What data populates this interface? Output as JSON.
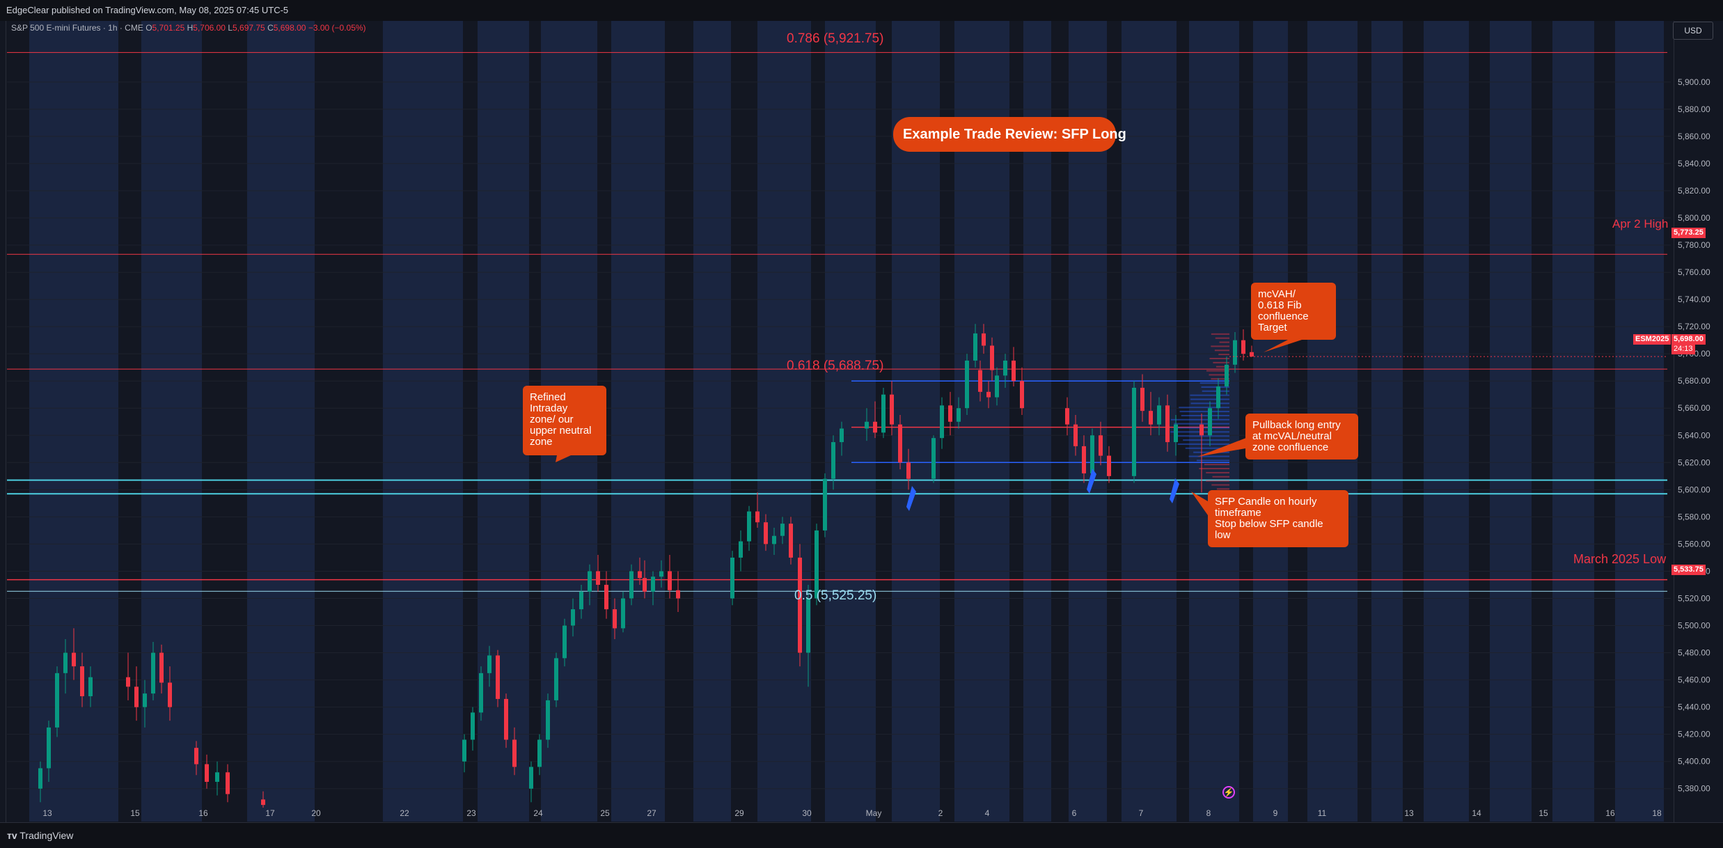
{
  "header": {
    "publisher": "EdgeClear published on TradingView.com, May 08, 2025 07:45 UTC-5",
    "symbol": "S&P 500 E-mini Futures · 1h · CME",
    "ohlc": {
      "o_label": "O",
      "o": "5,701.25",
      "h_label": "H",
      "h": "5,706.00",
      "l_label": "L",
      "l": "5,697.75",
      "c_label": "C",
      "c": "5,698.00",
      "change": "−3.00 (−0.05%)"
    },
    "currency": "USD"
  },
  "footer": {
    "brand": "TradingView"
  },
  "colors": {
    "up": "#089981",
    "down": "#f23645",
    "callout": "#e0430f",
    "fib_red": "#f23645",
    "fib_cyan": "#9bdcf0",
    "zone_cyan": "#4dd0e1",
    "blue_line": "#2962ff",
    "arrow": "#2962ff",
    "band": "#1c2845"
  },
  "annotations": {
    "title": "Example Trade Review: SFP Long",
    "refined_zone": "Refined\nIntraday\nzone/ our\nupper neutral\nzone",
    "target": "mcVAH/\n0.618 Fib\nconfluence\nTarget",
    "pullback": "Pullback long entry\nat mcVAL/neutral\nzone confluence",
    "sfp": "SFP Candle on hourly\ntimeframe\nStop below SFP candle\nlow",
    "fib_786": "0.786 (5,921.75)",
    "fib_618": "0.618 (5,688.75)",
    "fib_05": "0.5 (5,525.25)",
    "apr2_high": "Apr 2 High",
    "march_low": "March 2025 Low"
  },
  "price_tags": {
    "apr2": "5,773.25",
    "current": "5,698.00",
    "countdown": "24:13",
    "ticker": "ESM2025",
    "march": "5,533.75"
  },
  "chart_data": {
    "type": "candlestick",
    "timeframe": "1h",
    "ylim": [
      5365,
      5945
    ],
    "y_ticks": [
      5380,
      5400,
      5420,
      5440,
      5460,
      5480,
      5500,
      5520,
      5540,
      5560,
      5580,
      5600,
      5620,
      5640,
      5660,
      5680,
      5700,
      5720,
      5740,
      5760,
      5780,
      5800,
      5820,
      5840,
      5860,
      5880,
      5900
    ],
    "y_tick_labels": [
      "5,380.00",
      "5,400.00",
      "5,420.00",
      "5,440.00",
      "5,460.00",
      "5,480.00",
      "5,500.00",
      "5,520.00",
      "5,540.00",
      "5,560.00",
      "5,580.00",
      "5,600.00",
      "5,620.00",
      "5,640.00",
      "5,660.00",
      "5,680.00",
      "5,700.00",
      "5,720.00",
      "5,740.00",
      "5,760.00",
      "5,780.00",
      "5,800.00",
      "5,820.00",
      "5,840.00",
      "5,860.00",
      "5,880.00",
      "5,900.00"
    ],
    "x_labels": [
      "13",
      "15",
      "16",
      "17",
      "20",
      "22",
      "23",
      "24",
      "25",
      "27",
      "29",
      "30",
      "May",
      "2",
      "4",
      "6",
      "7",
      "8",
      "9",
      "11",
      "13",
      "14",
      "15",
      "16",
      "18"
    ],
    "levels": {
      "fib_786": 5921.75,
      "apr2_high": 5773.25,
      "fib_618": 5688.75,
      "mcVAH": 5680,
      "mcPOC": 5646,
      "mcVAL": 5620,
      "zone_top": 5607,
      "zone_bottom": 5597,
      "march_low": 5533.75,
      "fib_05": 5525.25
    },
    "sessions": [
      {
        "label": "13",
        "bars": [
          [
            5380,
            5400,
            5370,
            5395
          ],
          [
            5395,
            5430,
            5385,
            5425
          ],
          [
            5425,
            5470,
            5418,
            5465
          ],
          [
            5465,
            5490,
            5450,
            5480
          ],
          [
            5480,
            5498,
            5460,
            5470
          ],
          [
            5470,
            5480,
            5440,
            5448
          ],
          [
            5448,
            5470,
            5440,
            5462
          ]
        ]
      },
      {
        "label": "15",
        "bars": [
          [
            5462,
            5480,
            5445,
            5455
          ],
          [
            5455,
            5470,
            5430,
            5440
          ],
          [
            5440,
            5460,
            5425,
            5450
          ],
          [
            5450,
            5488,
            5445,
            5480
          ],
          [
            5480,
            5486,
            5450,
            5458
          ],
          [
            5458,
            5470,
            5430,
            5440
          ]
        ]
      },
      {
        "label": "16",
        "bars": [
          [
            5410,
            5415,
            5390,
            5398
          ],
          [
            5398,
            5405,
            5380,
            5385
          ],
          [
            5385,
            5400,
            5375,
            5392
          ],
          [
            5392,
            5398,
            5370,
            5376
          ]
        ]
      },
      {
        "label": "17",
        "bars": [
          [
            5372,
            5378,
            5366,
            5368
          ]
        ]
      },
      {
        "label": "23",
        "bars": [
          [
            5400,
            5420,
            5392,
            5416
          ],
          [
            5416,
            5440,
            5408,
            5436
          ],
          [
            5436,
            5470,
            5430,
            5465
          ],
          [
            5465,
            5485,
            5455,
            5478
          ],
          [
            5478,
            5482,
            5440,
            5446
          ],
          [
            5446,
            5450,
            5410,
            5416
          ],
          [
            5416,
            5425,
            5390,
            5396
          ]
        ]
      },
      {
        "label": "24",
        "bars": [
          [
            5380,
            5400,
            5370,
            5396
          ],
          [
            5396,
            5420,
            5390,
            5416
          ],
          [
            5416,
            5450,
            5410,
            5445
          ],
          [
            5445,
            5480,
            5440,
            5476
          ],
          [
            5476,
            5505,
            5470,
            5500
          ],
          [
            5500,
            5520,
            5492,
            5512
          ],
          [
            5512,
            5530,
            5505,
            5525
          ],
          [
            5525,
            5545,
            5515,
            5540
          ]
        ]
      },
      {
        "label": "25",
        "bars": [
          [
            5540,
            5552,
            5525,
            5530
          ],
          [
            5530,
            5540,
            5505,
            5512
          ],
          [
            5512,
            5520,
            5490,
            5498
          ],
          [
            5498,
            5525,
            5495,
            5520
          ],
          [
            5520,
            5545,
            5515,
            5540
          ],
          [
            5540,
            5550,
            5530,
            5535
          ]
        ]
      },
      {
        "label": "27",
        "bars": [
          [
            5535,
            5548,
            5520,
            5525
          ],
          [
            5525,
            5540,
            5515,
            5536
          ],
          [
            5536,
            5548,
            5528,
            5540
          ],
          [
            5540,
            5552,
            5520,
            5526
          ],
          [
            5526,
            5540,
            5510,
            5520
          ]
        ]
      },
      {
        "label": "29",
        "bars": [
          [
            5520,
            5555,
            5515,
            5550
          ],
          [
            5550,
            5570,
            5540,
            5562
          ],
          [
            5562,
            5588,
            5555,
            5584
          ],
          [
            5584,
            5598,
            5572,
            5576
          ],
          [
            5576,
            5582,
            5555,
            5560
          ],
          [
            5560,
            5572,
            5552,
            5566
          ],
          [
            5566,
            5580,
            5560,
            5575
          ],
          [
            5575,
            5580,
            5545,
            5550
          ]
        ]
      },
      {
        "label": "30",
        "bars": [
          [
            5550,
            5560,
            5470,
            5480
          ],
          [
            5480,
            5530,
            5455,
            5520
          ],
          [
            5520,
            5575,
            5515,
            5570
          ],
          [
            5570,
            5612,
            5565,
            5608
          ],
          [
            5608,
            5640,
            5600,
            5635
          ],
          [
            5635,
            5650,
            5625,
            5645
          ]
        ]
      },
      {
        "label": "May",
        "bars": [
          [
            5645,
            5660,
            5636,
            5650
          ],
          [
            5650,
            5665,
            5638,
            5642
          ],
          [
            5642,
            5675,
            5638,
            5670
          ],
          [
            5670,
            5680,
            5640,
            5648
          ],
          [
            5648,
            5655,
            5615,
            5620
          ],
          [
            5620,
            5630,
            5600,
            5608
          ]
        ]
      },
      {
        "label": "2",
        "bars": [
          [
            5608,
            5640,
            5605,
            5638
          ],
          [
            5638,
            5668,
            5630,
            5662
          ],
          [
            5662,
            5672,
            5640,
            5650
          ],
          [
            5650,
            5668,
            5645,
            5660
          ],
          [
            5660,
            5700,
            5655,
            5695
          ],
          [
            5695,
            5722,
            5690,
            5715
          ],
          [
            5715,
            5722,
            5700,
            5706
          ],
          [
            5706,
            5712,
            5680,
            5688
          ]
        ]
      },
      {
        "label": "4",
        "bars": [
          [
            5688,
            5695,
            5665,
            5672
          ],
          [
            5672,
            5680,
            5660,
            5668
          ],
          [
            5668,
            5690,
            5662,
            5684
          ],
          [
            5684,
            5700,
            5675,
            5695
          ],
          [
            5695,
            5705,
            5676,
            5680
          ],
          [
            5680,
            5690,
            5655,
            5660
          ]
        ]
      },
      {
        "label": "6",
        "bars": [
          [
            5660,
            5668,
            5640,
            5648
          ],
          [
            5648,
            5655,
            5625,
            5632
          ],
          [
            5632,
            5640,
            5605,
            5612
          ],
          [
            5612,
            5645,
            5608,
            5640
          ],
          [
            5640,
            5650,
            5618,
            5625
          ],
          [
            5625,
            5632,
            5605,
            5610
          ]
        ]
      },
      {
        "label": "7",
        "bars": [
          [
            5610,
            5680,
            5605,
            5675
          ],
          [
            5675,
            5685,
            5650,
            5658
          ],
          [
            5658,
            5672,
            5640,
            5648
          ],
          [
            5648,
            5668,
            5640,
            5662
          ],
          [
            5662,
            5670,
            5628,
            5635
          ],
          [
            5635,
            5655,
            5625,
            5648
          ]
        ]
      },
      {
        "label": "8",
        "bars": [
          [
            5648,
            5656,
            5598,
            5640
          ],
          [
            5640,
            5665,
            5632,
            5660
          ],
          [
            5660,
            5682,
            5652,
            5676
          ],
          [
            5676,
            5698,
            5670,
            5692
          ],
          [
            5692,
            5716,
            5686,
            5710
          ],
          [
            5710,
            5718,
            5695,
            5700
          ],
          [
            5701.25,
            5706,
            5697.75,
            5698
          ]
        ]
      }
    ]
  }
}
